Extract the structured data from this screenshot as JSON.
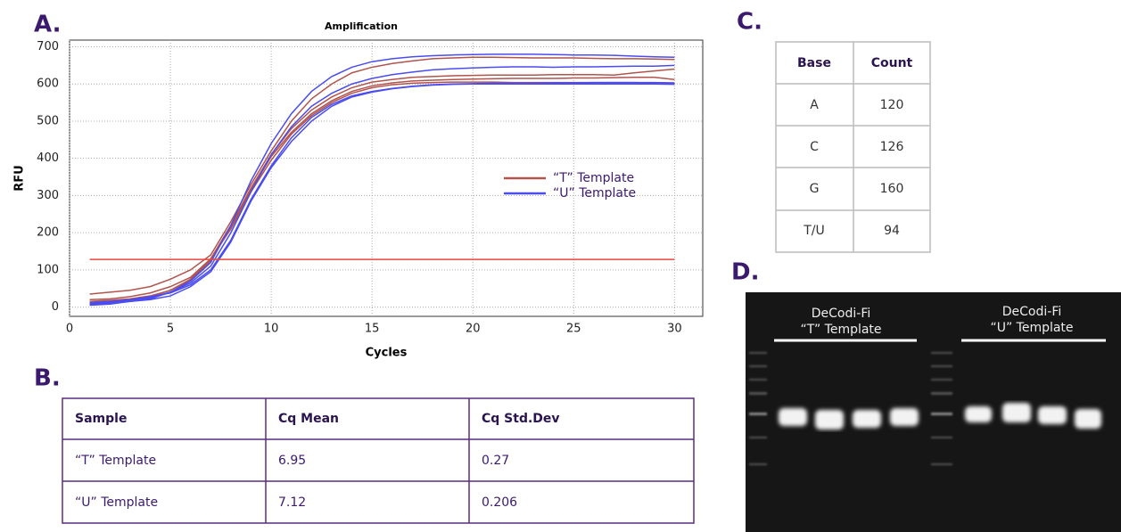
{
  "panels": {
    "a": "A.",
    "b": "B.",
    "c": "C.",
    "d": "D."
  },
  "chart_data": {
    "type": "line",
    "title": "Amplification",
    "x_label": "Cycles",
    "y_label": "RFU",
    "x": [
      1,
      2,
      3,
      4,
      5,
      6,
      7,
      8,
      9,
      10,
      11,
      12,
      13,
      14,
      15,
      16,
      17,
      18,
      19,
      20,
      21,
      22,
      23,
      24,
      25,
      26,
      27,
      28,
      29,
      30
    ],
    "series": [
      {
        "name": "“T” Template",
        "color": "#b0544e",
        "values": [
          [
            35,
            40,
            45,
            55,
            75,
            100,
            140,
            230,
            330,
            420,
            500,
            560,
            600,
            630,
            645,
            655,
            662,
            668,
            670,
            672,
            672,
            671,
            670,
            670,
            670,
            669,
            668,
            668,
            667,
            666
          ],
          [
            15,
            18,
            22,
            30,
            45,
            75,
            130,
            220,
            320,
            410,
            480,
            530,
            565,
            590,
            605,
            612,
            618,
            620,
            622,
            623,
            624,
            624,
            624,
            625,
            625,
            625,
            624,
            630,
            635,
            640
          ],
          [
            10,
            14,
            20,
            28,
            45,
            72,
            125,
            215,
            315,
            405,
            470,
            520,
            555,
            580,
            595,
            603,
            608,
            610,
            612,
            613,
            614,
            615,
            615,
            615,
            616,
            616,
            617,
            618,
            618,
            612
          ],
          [
            20,
            22,
            28,
            38,
            55,
            80,
            130,
            210,
            310,
            395,
            465,
            515,
            550,
            575,
            590,
            598,
            602,
            604,
            605,
            605,
            605,
            604,
            604,
            604,
            604,
            604,
            604,
            604,
            603,
            602
          ]
        ]
      },
      {
        "name": "“U” Template",
        "color": "#4a4cf0",
        "values": [
          [
            5,
            8,
            15,
            22,
            40,
            70,
            120,
            220,
            340,
            440,
            520,
            580,
            620,
            645,
            660,
            668,
            673,
            676,
            678,
            679,
            680,
            680,
            680,
            679,
            678,
            678,
            677,
            675,
            673,
            672
          ],
          [
            10,
            12,
            18,
            25,
            40,
            65,
            110,
            200,
            310,
            410,
            485,
            540,
            575,
            600,
            615,
            625,
            632,
            638,
            641,
            643,
            645,
            646,
            646,
            645,
            646,
            646,
            647,
            648,
            648,
            650
          ],
          [
            12,
            15,
            20,
            28,
            38,
            60,
            100,
            180,
            290,
            380,
            455,
            510,
            545,
            568,
            580,
            588,
            594,
            598,
            600,
            601,
            602,
            602,
            602,
            603,
            603,
            604,
            604,
            604,
            604,
            603
          ],
          [
            8,
            10,
            15,
            20,
            30,
            55,
            95,
            175,
            285,
            375,
            445,
            500,
            540,
            565,
            578,
            587,
            593,
            597,
            599,
            600,
            600,
            600,
            600,
            600,
            600,
            600,
            600,
            600,
            600,
            599
          ]
        ]
      }
    ],
    "threshold": 128,
    "threshold_color": "#e8473d",
    "xlim": [
      0,
      31.4
    ],
    "ylim": [
      -25,
      718
    ],
    "xticks": [
      0,
      5,
      10,
      15,
      20,
      25,
      30
    ],
    "yticks": [
      0,
      100,
      200,
      300,
      400,
      500,
      600,
      700
    ],
    "grid": true
  },
  "table_b": {
    "header": [
      "Sample",
      "Cq Mean",
      "Cq Std.Dev"
    ],
    "rows": [
      [
        "“T” Template",
        "6.95",
        "0.27"
      ],
      [
        "“U” Template",
        "7.12",
        "0.206"
      ]
    ]
  },
  "table_c": {
    "header": [
      "Base",
      "Count"
    ],
    "rows": [
      [
        "A",
        "120"
      ],
      [
        "C",
        "126"
      ],
      [
        "G",
        "160"
      ],
      [
        "T/U",
        "94"
      ]
    ]
  },
  "gel": {
    "labels": [
      [
        "DeCodi-Fi",
        "“T” Template"
      ],
      [
        "DeCodi-Fi",
        "“U” Template"
      ]
    ]
  }
}
